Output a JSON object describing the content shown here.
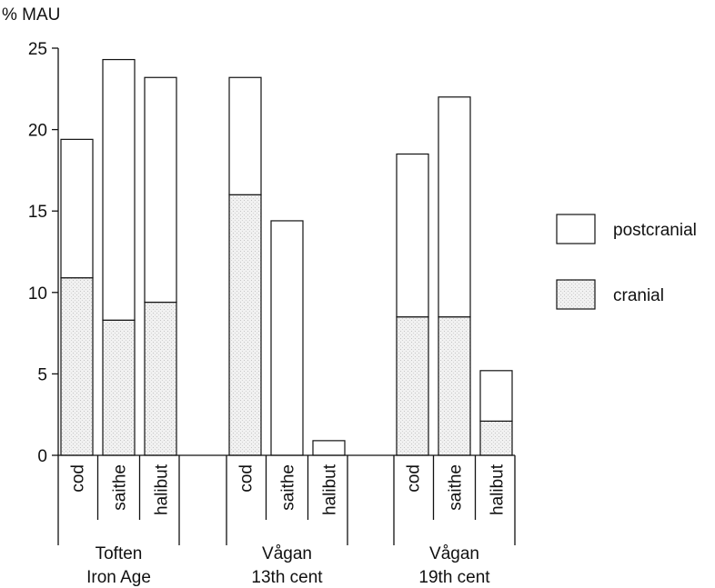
{
  "chart_data": {
    "type": "bar",
    "stacked": true,
    "ylabel": "% MAU",
    "ylim": [
      0,
      25
    ],
    "yticks": [
      "0",
      "5",
      "10",
      "15",
      "20",
      "25"
    ],
    "grid": false,
    "legend_position": "right",
    "groups": [
      {
        "label_line1": "Toften",
        "label_line2": "Iron Age",
        "categories": [
          "cod",
          "saithe",
          "halibut"
        ],
        "cranial": [
          10.9,
          8.3,
          9.4
        ],
        "total": [
          19.4,
          24.3,
          23.2
        ]
      },
      {
        "label_line1": "Vågan",
        "label_line2": "13th cent",
        "categories": [
          "cod",
          "saithe",
          "halibut"
        ],
        "cranial": [
          16.0,
          0,
          0
        ],
        "total": [
          23.2,
          14.4,
          0.9
        ]
      },
      {
        "label_line1": "Vågan",
        "label_line2": "19th cent",
        "categories": [
          "cod",
          "saithe",
          "halibut"
        ],
        "cranial": [
          8.5,
          8.5,
          2.1
        ],
        "total": [
          18.5,
          22.0,
          5.2
        ]
      }
    ],
    "series": [
      {
        "name": "postcranial",
        "color": "#ffffff"
      },
      {
        "name": "cranial",
        "color": "#eeeeee"
      }
    ]
  }
}
